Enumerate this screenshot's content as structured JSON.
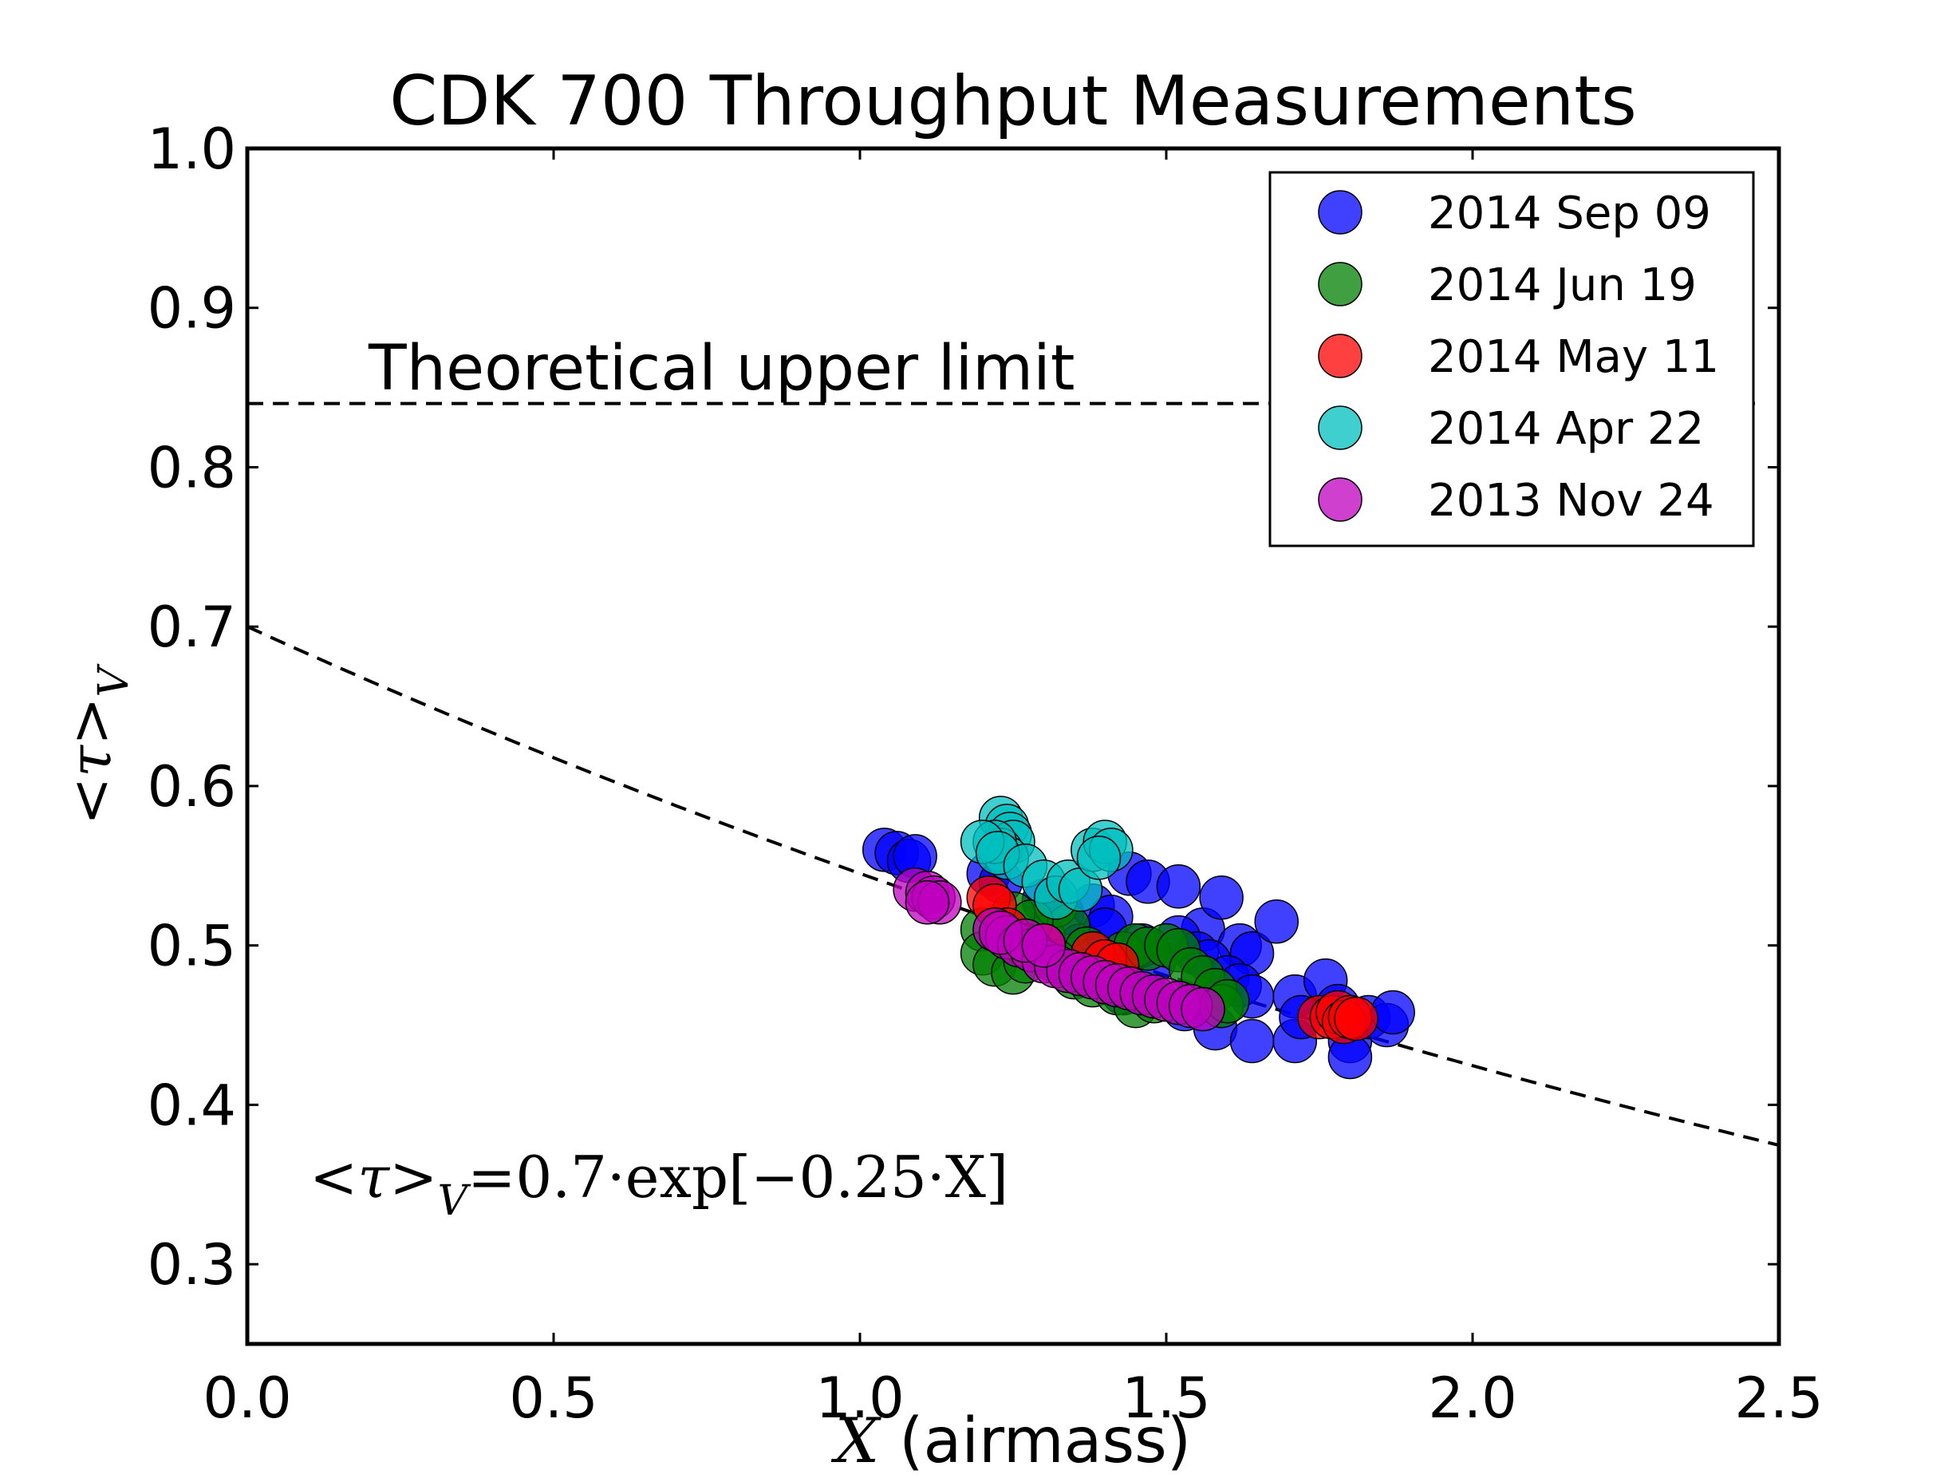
{
  "chart_data": {
    "type": "scatter",
    "title": "CDK 700 Throughput Measurements",
    "xlabel_var": "X",
    "xlabel_rest": " (airmass)",
    "ylabel": "<τ>",
    "ylabel_sub": "V",
    "xlim": [
      0.0,
      2.5
    ],
    "ylim": [
      0.25,
      1.0
    ],
    "xticks": [
      "0.0",
      "0.5",
      "1.0",
      "1.5",
      "2.0",
      "2.5"
    ],
    "yticks": [
      "0.3",
      "0.4",
      "0.5",
      "0.6",
      "0.7",
      "0.8",
      "0.9",
      "1.0"
    ],
    "grid": false,
    "legend_position": "top-right",
    "upper_limit": {
      "value": 0.84,
      "label": "Theoretical upper limit"
    },
    "fit": {
      "a": 0.7,
      "b": 0.25,
      "label_lhs": "<τ>",
      "label_sub": "V",
      "label_rhs": "=0.7·exp[−0.25·X]"
    },
    "series": [
      {
        "name": "2014 Sep 09",
        "color": "#0000ff",
        "points": [
          [
            1.04,
            0.56
          ],
          [
            1.06,
            0.558
          ],
          [
            1.08,
            0.553
          ],
          [
            1.09,
            0.556
          ],
          [
            1.21,
            0.545
          ],
          [
            1.23,
            0.54
          ],
          [
            1.3,
            0.528
          ],
          [
            1.33,
            0.52
          ],
          [
            1.38,
            0.525
          ],
          [
            1.41,
            0.518
          ],
          [
            1.44,
            0.545
          ],
          [
            1.47,
            0.54
          ],
          [
            1.52,
            0.537
          ],
          [
            1.56,
            0.51
          ],
          [
            1.59,
            0.53
          ],
          [
            1.62,
            0.5
          ],
          [
            1.64,
            0.495
          ],
          [
            1.68,
            0.515
          ],
          [
            1.52,
            0.505
          ],
          [
            1.55,
            0.495
          ],
          [
            1.57,
            0.49
          ],
          [
            1.6,
            0.48
          ],
          [
            1.62,
            0.475
          ],
          [
            1.64,
            0.468
          ],
          [
            1.53,
            0.46
          ],
          [
            1.58,
            0.448
          ],
          [
            1.64,
            0.44
          ],
          [
            1.71,
            0.468
          ],
          [
            1.71,
            0.44
          ],
          [
            1.72,
            0.455
          ],
          [
            1.76,
            0.478
          ],
          [
            1.78,
            0.462
          ],
          [
            1.8,
            0.44
          ],
          [
            1.8,
            0.43
          ],
          [
            1.83,
            0.455
          ],
          [
            1.86,
            0.45
          ],
          [
            1.87,
            0.458
          ],
          [
            1.43,
            0.47
          ],
          [
            1.48,
            0.49
          ],
          [
            1.46,
            0.5
          ],
          [
            1.36,
            0.5
          ],
          [
            1.4,
            0.51
          ]
        ]
      },
      {
        "name": "2014 Jun 19",
        "color": "#007f00",
        "points": [
          [
            1.2,
            0.51
          ],
          [
            1.2,
            0.495
          ],
          [
            1.22,
            0.488
          ],
          [
            1.25,
            0.483
          ],
          [
            1.27,
            0.49
          ],
          [
            1.3,
            0.505
          ],
          [
            1.32,
            0.525
          ],
          [
            1.34,
            0.512
          ],
          [
            1.37,
            0.498
          ],
          [
            1.4,
            0.49
          ],
          [
            1.43,
            0.495
          ],
          [
            1.45,
            0.5
          ],
          [
            1.47,
            0.498
          ],
          [
            1.5,
            0.5
          ],
          [
            1.52,
            0.497
          ],
          [
            1.54,
            0.485
          ],
          [
            1.56,
            0.48
          ],
          [
            1.58,
            0.472
          ],
          [
            1.59,
            0.462
          ],
          [
            1.6,
            0.465
          ],
          [
            1.35,
            0.48
          ],
          [
            1.38,
            0.475
          ],
          [
            1.42,
            0.47
          ],
          [
            1.45,
            0.462
          ],
          [
            1.48,
            0.465
          ],
          [
            1.25,
            0.52
          ],
          [
            1.28,
            0.515
          ],
          [
            1.32,
            0.49
          ]
        ]
      },
      {
        "name": "2014 May 11",
        "color": "#ff0000",
        "points": [
          [
            1.21,
            0.53
          ],
          [
            1.22,
            0.525
          ],
          [
            1.24,
            0.51
          ],
          [
            1.27,
            0.5
          ],
          [
            1.3,
            0.5
          ],
          [
            1.38,
            0.495
          ],
          [
            1.4,
            0.49
          ],
          [
            1.42,
            0.488
          ],
          [
            1.75,
            0.455
          ],
          [
            1.77,
            0.455
          ],
          [
            1.78,
            0.458
          ],
          [
            1.79,
            0.452
          ],
          [
            1.8,
            0.455
          ],
          [
            1.81,
            0.454
          ]
        ]
      },
      {
        "name": "2014 Apr 22",
        "color": "#00bfbf",
        "points": [
          [
            1.23,
            0.58
          ],
          [
            1.24,
            0.575
          ],
          [
            1.245,
            0.57
          ],
          [
            1.25,
            0.565
          ],
          [
            1.23,
            0.56
          ],
          [
            1.24,
            0.555
          ],
          [
            1.22,
            0.565
          ],
          [
            1.2,
            0.565
          ],
          [
            1.225,
            0.558
          ],
          [
            1.27,
            0.55
          ],
          [
            1.3,
            0.54
          ],
          [
            1.32,
            0.53
          ],
          [
            1.34,
            0.54
          ],
          [
            1.36,
            0.535
          ],
          [
            1.38,
            0.56
          ],
          [
            1.4,
            0.565
          ],
          [
            1.41,
            0.56
          ],
          [
            1.39,
            0.555
          ]
        ]
      },
      {
        "name": "2013 Nov 24",
        "color": "#bf00bf",
        "points": [
          [
            1.09,
            0.535
          ],
          [
            1.11,
            0.533
          ],
          [
            1.12,
            0.53
          ],
          [
            1.13,
            0.527
          ],
          [
            1.11,
            0.527
          ],
          [
            1.22,
            0.51
          ],
          [
            1.24,
            0.505
          ],
          [
            1.26,
            0.5
          ],
          [
            1.28,
            0.497
          ],
          [
            1.3,
            0.49
          ],
          [
            1.32,
            0.487
          ],
          [
            1.34,
            0.484
          ],
          [
            1.36,
            0.482
          ],
          [
            1.38,
            0.48
          ],
          [
            1.4,
            0.477
          ],
          [
            1.42,
            0.475
          ],
          [
            1.44,
            0.473
          ],
          [
            1.46,
            0.47
          ],
          [
            1.48,
            0.468
          ],
          [
            1.5,
            0.466
          ],
          [
            1.52,
            0.464
          ],
          [
            1.54,
            0.462
          ],
          [
            1.56,
            0.46
          ],
          [
            1.23,
            0.508
          ],
          [
            1.27,
            0.503
          ],
          [
            1.3,
            0.5
          ]
        ]
      }
    ]
  }
}
